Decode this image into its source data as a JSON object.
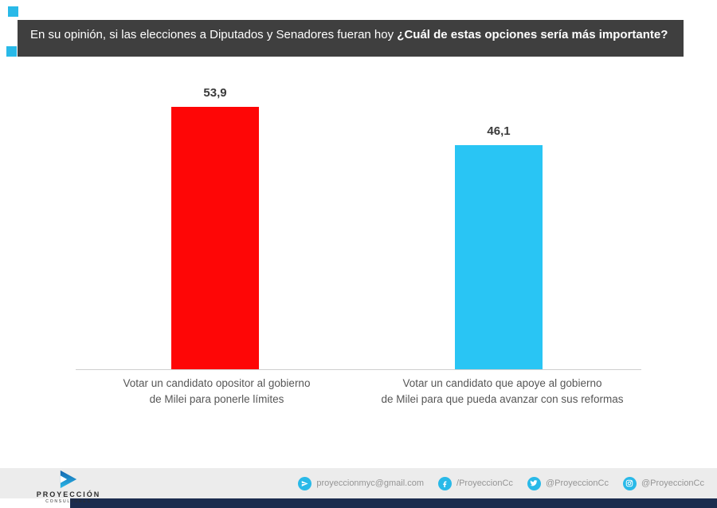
{
  "header": {
    "question_normal": "En su opinión, si las elecciones a Diputados y Senadores fueran hoy ",
    "question_bold": "¿Cuál de estas opciones sería más importante?"
  },
  "chart_data": {
    "type": "bar",
    "title": "En su opinión, si las elecciones a Diputados y Senadores fueran hoy ¿Cuál de estas opciones sería más importante?",
    "categories": [
      "Votar un candidato opositor al gobierno de Milei para ponerle límites",
      "Votar un candidato que apoye al gobierno de Milei para que pueda avanzar con sus reformas"
    ],
    "category_lines": [
      [
        "Votar un candidato opositor al gobierno",
        "de Milei para ponerle límites"
      ],
      [
        "Votar un candidato que apoye al gobierno",
        "de Milei para que pueda avanzar con sus reformas"
      ]
    ],
    "values": [
      53.9,
      46.1
    ],
    "value_labels": [
      "53,9",
      "46,1"
    ],
    "bar_colors": [
      "#fe0606",
      "#29c5f4"
    ],
    "xlabel": "",
    "ylabel": "",
    "ylim": [
      0,
      60
    ],
    "grid": false,
    "legend": false
  },
  "footer": {
    "logo_name": "PROYECCIÓN",
    "logo_sub": "CONSULTORES",
    "contacts": [
      {
        "icon": "send-icon",
        "text": "proyeccionmyc@gmail.com"
      },
      {
        "icon": "facebook-icon",
        "text": "/ProyeccionCc"
      },
      {
        "icon": "twitter-icon",
        "text": "@ProyeccionCc"
      },
      {
        "icon": "instagram-icon",
        "text": "@ProyeccionCc"
      }
    ]
  },
  "colors": {
    "accent": "#29b9e8",
    "navy": "#1b2c4e",
    "header-bg": "#3f3f3f",
    "band-bg": "#ececec"
  }
}
